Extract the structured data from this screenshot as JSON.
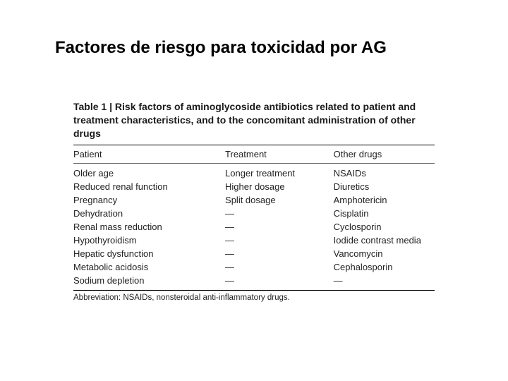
{
  "slide": {
    "title": "Factores de riesgo para toxicidad por AG",
    "title_color": "#000000",
    "title_fontsize": 24,
    "background_color": "#ffffff"
  },
  "table": {
    "type": "table",
    "caption_label": "Table 1",
    "caption_separator": " | ",
    "caption_text": "Risk factors of aminoglycoside antibiotics related to patient and treatment characteristics, and to the concomitant administration of other drugs",
    "caption_fontsize": 14,
    "caption_fontweight": "bold",
    "columns": [
      "Patient",
      "Treatment",
      "Other drugs"
    ],
    "column_widths_pct": [
      42,
      30,
      28
    ],
    "header_border_top_color": "#000000",
    "header_border_bottom_color": "#666666",
    "body_border_bottom_color": "#000000",
    "body_fontsize": 13,
    "text_color": "#222222",
    "empty_marker": "—",
    "rows": [
      [
        "Older age",
        "Longer treatment",
        "NSAIDs"
      ],
      [
        "Reduced renal function",
        "Higher dosage",
        "Diuretics"
      ],
      [
        "Pregnancy",
        "Split dosage",
        "Amphotericin"
      ],
      [
        "Dehydration",
        "—",
        "Cisplatin"
      ],
      [
        "Renal mass reduction",
        "—",
        "Cyclosporin"
      ],
      [
        "Hypothyroidism",
        "—",
        "Iodide contrast media"
      ],
      [
        "Hepatic dysfunction",
        "—",
        "Vancomycin"
      ],
      [
        "Metabolic acidosis",
        "—",
        "Cephalosporin"
      ],
      [
        "Sodium depletion",
        "—",
        "—"
      ]
    ],
    "abbreviation": "Abbreviation: NSAIDs, nonsteroidal anti-inflammatory drugs.",
    "abbreviation_fontsize": 11.5
  }
}
